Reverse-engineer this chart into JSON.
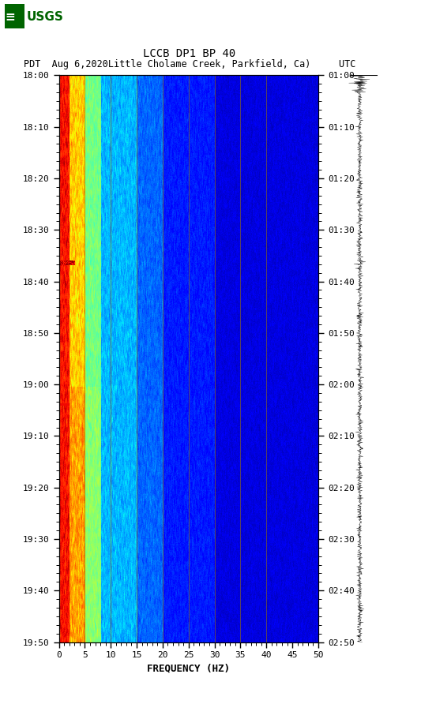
{
  "title_line1": "LCCB DP1 BP 40",
  "title_line2": "PDT  Aug 6,2020Little Cholame Creek, Parkfield, Ca)     UTC",
  "xlabel": "FREQUENCY (HZ)",
  "freq_min": 0,
  "freq_max": 50,
  "freq_ticks": [
    0,
    5,
    10,
    15,
    20,
    25,
    30,
    35,
    40,
    45,
    50
  ],
  "time_labels_left": [
    "18:00",
    "18:10",
    "18:20",
    "18:30",
    "18:40",
    "18:50",
    "19:00",
    "19:10",
    "19:20",
    "19:30",
    "19:40",
    "19:50"
  ],
  "time_labels_right": [
    "01:00",
    "01:10",
    "01:20",
    "01:30",
    "01:40",
    "01:50",
    "02:00",
    "02:10",
    "02:20",
    "02:30",
    "02:40",
    "02:50"
  ],
  "vertical_lines_freq": [
    5,
    10,
    15,
    20,
    25,
    30,
    35,
    40
  ],
  "vertical_line_color": "#8B6914",
  "background_color": "#ffffff",
  "fig_width": 5.52,
  "fig_height": 8.92
}
